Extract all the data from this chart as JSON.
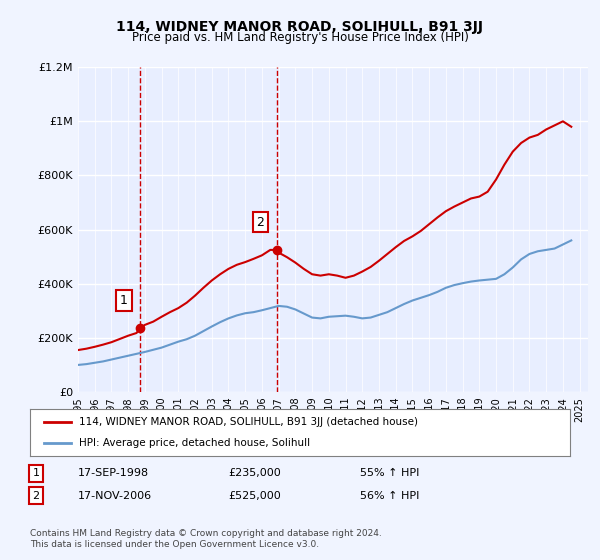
{
  "title": "114, WIDNEY MANOR ROAD, SOLIHULL, B91 3JJ",
  "subtitle": "Price paid vs. HM Land Registry's House Price Index (HPI)",
  "ylabel_ticks": [
    "£0",
    "£200K",
    "£400K",
    "£600K",
    "£800K",
    "£1M",
    "£1.2M"
  ],
  "ylim": [
    0,
    1200000
  ],
  "xlim_start": 1995.0,
  "xlim_end": 2025.5,
  "background_color": "#f0f4ff",
  "plot_background": "#e8eeff",
  "grid_color": "#ffffff",
  "sale1_date_x": 1998.71,
  "sale1_price": 235000,
  "sale2_date_x": 2006.88,
  "sale2_price": 525000,
  "sale1_label": "1",
  "sale2_label": "2",
  "legend_line1": "114, WIDNEY MANOR ROAD, SOLIHULL, B91 3JJ (detached house)",
  "legend_line2": "HPI: Average price, detached house, Solihull",
  "table_row1": [
    "1",
    "17-SEP-1998",
    "£235,000",
    "55% ↑ HPI"
  ],
  "table_row2": [
    "2",
    "17-NOV-2006",
    "£525,000",
    "56% ↑ HPI"
  ],
  "footer": "Contains HM Land Registry data © Crown copyright and database right 2024.\nThis data is licensed under the Open Government Licence v3.0.",
  "red_color": "#cc0000",
  "blue_color": "#6699cc",
  "hpi_x": [
    1995,
    1995.5,
    1996,
    1996.5,
    1997,
    1997.5,
    1998,
    1998.5,
    1999,
    1999.5,
    2000,
    2000.5,
    2001,
    2001.5,
    2002,
    2002.5,
    2003,
    2003.5,
    2004,
    2004.5,
    2005,
    2005.5,
    2006,
    2006.5,
    2007,
    2007.5,
    2008,
    2008.5,
    2009,
    2009.5,
    2010,
    2010.5,
    2011,
    2011.5,
    2012,
    2012.5,
    2013,
    2013.5,
    2014,
    2014.5,
    2015,
    2015.5,
    2016,
    2016.5,
    2017,
    2017.5,
    2018,
    2018.5,
    2019,
    2019.5,
    2020,
    2020.5,
    2021,
    2021.5,
    2022,
    2022.5,
    2023,
    2023.5,
    2024,
    2024.5
  ],
  "hpi_y": [
    100000,
    103000,
    108000,
    113000,
    120000,
    127000,
    134000,
    141000,
    148000,
    156000,
    164000,
    175000,
    186000,
    195000,
    208000,
    225000,
    242000,
    258000,
    272000,
    283000,
    291000,
    295000,
    302000,
    310000,
    318000,
    315000,
    305000,
    290000,
    275000,
    272000,
    278000,
    280000,
    282000,
    278000,
    272000,
    275000,
    285000,
    295000,
    310000,
    325000,
    338000,
    348000,
    358000,
    370000,
    385000,
    395000,
    402000,
    408000,
    412000,
    415000,
    418000,
    435000,
    460000,
    490000,
    510000,
    520000,
    525000,
    530000,
    545000,
    560000
  ],
  "red_x": [
    1995,
    1995.5,
    1996,
    1996.5,
    1997,
    1997.5,
    1998,
    1998.5,
    1998.71,
    1999,
    1999.5,
    2000,
    2000.5,
    2001,
    2001.5,
    2002,
    2002.5,
    2003,
    2003.5,
    2004,
    2004.5,
    2005,
    2005.5,
    2006,
    2006.5,
    2006.88,
    2007,
    2007.5,
    2008,
    2008.5,
    2009,
    2009.5,
    2010,
    2010.5,
    2011,
    2011.5,
    2012,
    2012.5,
    2013,
    2013.5,
    2014,
    2014.5,
    2015,
    2015.5,
    2016,
    2016.5,
    2017,
    2017.5,
    2018,
    2018.5,
    2019,
    2019.5,
    2020,
    2020.5,
    2021,
    2021.5,
    2022,
    2022.5,
    2023,
    2023.5,
    2024,
    2024.5
  ],
  "red_y": [
    155000,
    160000,
    167000,
    175000,
    184000,
    196000,
    208000,
    218000,
    235000,
    248000,
    260000,
    278000,
    295000,
    310000,
    330000,
    356000,
    385000,
    412000,
    435000,
    455000,
    470000,
    480000,
    492000,
    505000,
    525000,
    525000,
    515000,
    498000,
    478000,
    455000,
    435000,
    430000,
    435000,
    430000,
    422000,
    430000,
    445000,
    462000,
    485000,
    510000,
    535000,
    558000,
    575000,
    595000,
    620000,
    645000,
    668000,
    685000,
    700000,
    715000,
    722000,
    740000,
    785000,
    840000,
    888000,
    920000,
    940000,
    950000,
    970000,
    985000,
    1000000,
    980000
  ]
}
